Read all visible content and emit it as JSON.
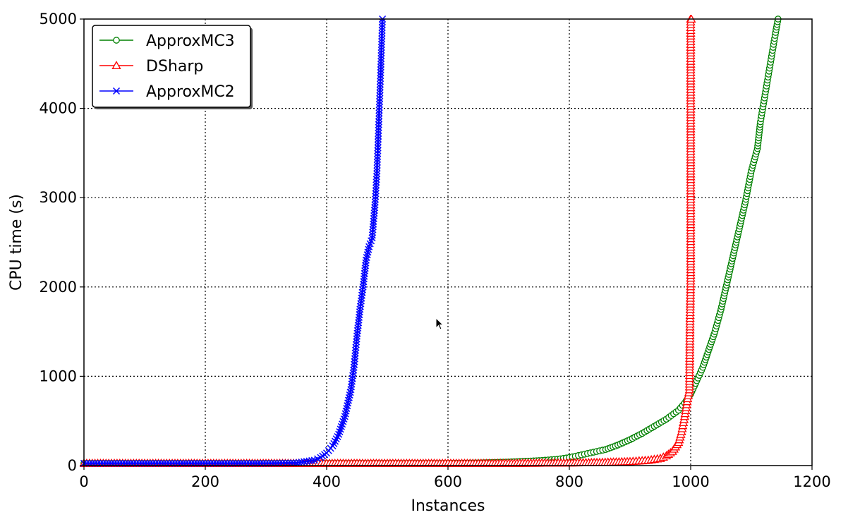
{
  "chart_data": {
    "type": "line",
    "xlabel": "Instances",
    "ylabel": "CPU time (s)",
    "xlim": [
      0,
      1200
    ],
    "ylim": [
      0,
      5000
    ],
    "xticks": [
      0,
      200,
      400,
      600,
      800,
      1000,
      1200
    ],
    "yticks": [
      0,
      1000,
      2000,
      3000,
      4000,
      5000
    ],
    "grid": true,
    "legend_position": "upper-left",
    "series": [
      {
        "name": "ApproxMC3",
        "color": "#008000",
        "marker": "circle",
        "x": [
          0,
          100,
          200,
          300,
          400,
          500,
          600,
          650,
          700,
          750,
          780,
          800,
          820,
          840,
          860,
          880,
          900,
          920,
          940,
          960,
          980,
          990,
          1000,
          1010,
          1020,
          1030,
          1040,
          1050,
          1060,
          1070,
          1080,
          1090,
          1100,
          1110,
          1115,
          1120,
          1125,
          1130,
          1135,
          1140,
          1144
        ],
        "y": [
          25,
          25,
          25,
          25,
          25,
          25,
          25,
          30,
          40,
          55,
          70,
          90,
          120,
          150,
          180,
          230,
          290,
          360,
          440,
          520,
          620,
          700,
          800,
          950,
          1100,
          1300,
          1500,
          1750,
          2050,
          2350,
          2650,
          2950,
          3300,
          3550,
          3850,
          4050,
          4250,
          4450,
          4650,
          4850,
          5000
        ]
      },
      {
        "name": "DSharp",
        "color": "#ff0000",
        "marker": "triangle",
        "x": [
          0,
          100,
          200,
          300,
          400,
          500,
          600,
          700,
          800,
          850,
          900,
          930,
          950,
          960,
          970,
          980,
          985,
          990,
          995,
          998,
          999,
          1000,
          1000,
          1000,
          1001
        ],
        "y": [
          25,
          25,
          25,
          25,
          25,
          25,
          25,
          25,
          30,
          35,
          45,
          60,
          80,
          110,
          160,
          260,
          380,
          550,
          750,
          850,
          1650,
          2100,
          4150,
          5000,
          5000
        ]
      },
      {
        "name": "ApproxMC2",
        "color": "#0000ff",
        "marker": "x",
        "x": [
          0,
          100,
          200,
          300,
          350,
          380,
          390,
          400,
          410,
          420,
          430,
          440,
          445,
          450,
          455,
          460,
          465,
          470,
          475,
          480,
          483,
          486,
          489,
          492
        ],
        "y": [
          25,
          25,
          25,
          25,
          30,
          60,
          90,
          140,
          220,
          350,
          550,
          850,
          1100,
          1450,
          1750,
          2000,
          2300,
          2450,
          2550,
          2950,
          3300,
          3850,
          4400,
          5000
        ]
      }
    ]
  }
}
